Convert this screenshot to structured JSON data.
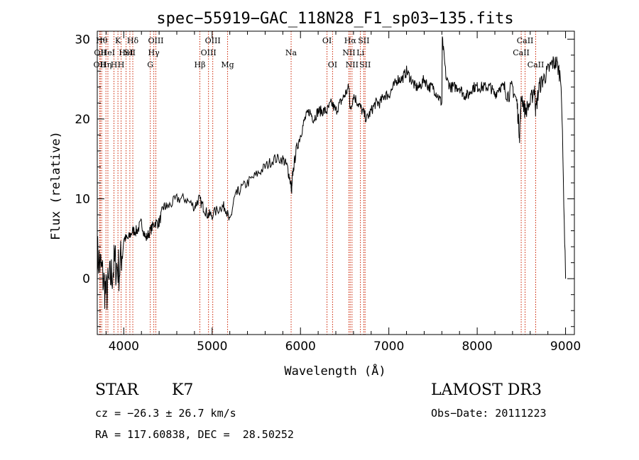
{
  "chart_data": {
    "type": "line",
    "title": "spec−55919−GAC_118N28_F1_sp03−135.fits",
    "xlabel": "Wavelength (Å)",
    "ylabel": "Flux (relative)",
    "xlim": [
      3700,
      9100
    ],
    "ylim": [
      -7,
      31
    ],
    "xticks": [
      4000,
      5000,
      6000,
      7000,
      8000,
      9000
    ],
    "yticks": [
      0,
      10,
      20,
      30
    ],
    "grid": false,
    "legend": "none",
    "series": [
      {
        "x": [
          3700,
          3750,
          3800,
          3850,
          3900,
          3950,
          4000,
          4050,
          4100,
          4150,
          4200,
          4250,
          4300,
          4350,
          4400,
          4450,
          4500,
          4600,
          4700,
          4800,
          4850,
          4900,
          4950,
          5000,
          5100,
          5150,
          5200,
          5250,
          5300,
          5400,
          5500,
          5600,
          5700,
          5800,
          5850,
          5890,
          5900,
          5910,
          5950,
          6000,
          6050,
          6100,
          6150,
          6200,
          6250,
          6300,
          6350,
          6400,
          6450,
          6500,
          6550,
          6563,
          6600,
          6650,
          6700,
          6750,
          6800,
          6850,
          6900,
          6950,
          7000,
          7050,
          7100,
          7150,
          7200,
          7250,
          7300,
          7350,
          7400,
          7450,
          7500,
          7550,
          7600,
          7605,
          7650,
          7700,
          7750,
          7800,
          7850,
          7900,
          7950,
          8000,
          8050,
          8100,
          8150,
          8200,
          8250,
          8300,
          8350,
          8400,
          8450,
          8480,
          8500,
          8542,
          8600,
          8650,
          8662,
          8700,
          8750,
          8800,
          8850,
          8900,
          8950,
          9000
        ],
        "y": [
          3,
          1,
          -2,
          0,
          2,
          1,
          5,
          5,
          6,
          6,
          7,
          5,
          6,
          7,
          7,
          9,
          9,
          10,
          10,
          9,
          10,
          9,
          8,
          8,
          9,
          9,
          7,
          10,
          11,
          12,
          13,
          14,
          15,
          15,
          14,
          12,
          11,
          13,
          16,
          18,
          20,
          21,
          20,
          21,
          21,
          21,
          22,
          21,
          22,
          23,
          24,
          21,
          23,
          22,
          21,
          20,
          21,
          22,
          22,
          23,
          23,
          24,
          25,
          25,
          26,
          25,
          24,
          24,
          25,
          24,
          24,
          23,
          22,
          30,
          25,
          24,
          24,
          24,
          23,
          23,
          24,
          24,
          24,
          24,
          24,
          23,
          24,
          24,
          23,
          24,
          22,
          18,
          23,
          21,
          22,
          24,
          21,
          24,
          25,
          26,
          27,
          27,
          25,
          0
        ]
      }
    ],
    "lines": [
      {
        "wl": 3727,
        "label": "OII",
        "row": 2
      },
      {
        "wl": 3734,
        "label": "OII",
        "row": 1
      },
      {
        "wl": 3750,
        "label": "Hθ",
        "row": 0
      },
      {
        "wl": 3798,
        "label": "Hη",
        "row": 2
      },
      {
        "wl": 3820,
        "label": "HeI",
        "row": 1
      },
      {
        "wl": 3889,
        "label": "H",
        "row": 2
      },
      {
        "wl": 3934,
        "label": "K",
        "row": 0
      },
      {
        "wl": 3970,
        "label": "H",
        "row": 2
      },
      {
        "wl": 4026,
        "label": "HeI",
        "row": 1
      },
      {
        "wl": 4069,
        "label": "SII",
        "row": 1
      },
      {
        "wl": 4102,
        "label": "Hδ",
        "row": 0
      },
      {
        "wl": 4300,
        "label": "G",
        "row": 2
      },
      {
        "wl": 4340,
        "label": "Hγ",
        "row": 1
      },
      {
        "wl": 4363,
        "label": "OIII",
        "row": 0
      },
      {
        "wl": 4861,
        "label": "Hβ",
        "row": 2
      },
      {
        "wl": 4959,
        "label": "OIII",
        "row": 1
      },
      {
        "wl": 5007,
        "label": "OIII",
        "row": 0
      },
      {
        "wl": 5175,
        "label": "Mg",
        "row": 2
      },
      {
        "wl": 5894,
        "label": "Na",
        "row": 1
      },
      {
        "wl": 6300,
        "label": "OI",
        "row": 0
      },
      {
        "wl": 6363,
        "label": "OI",
        "row": 2
      },
      {
        "wl": 6548,
        "label": "NII",
        "row": 1
      },
      {
        "wl": 6563,
        "label": "Hα",
        "row": 0
      },
      {
        "wl": 6583,
        "label": "NII",
        "row": 2
      },
      {
        "wl": 6678,
        "label": "Li",
        "row": 1
      },
      {
        "wl": 6716,
        "label": "SII",
        "row": 0
      },
      {
        "wl": 6731,
        "label": "SII",
        "row": 2
      },
      {
        "wl": 8498,
        "label": "CaII",
        "row": 1
      },
      {
        "wl": 8542,
        "label": "CaII",
        "row": 0
      },
      {
        "wl": 8662,
        "label": "CaII",
        "row": 2
      }
    ]
  },
  "info": {
    "object_class": "STAR",
    "subclass": "K7",
    "survey": "LAMOST DR3",
    "redshift": "cz = −26.3 ± 26.7 km/s",
    "obs_date": "Obs−Date: 20111223",
    "coords": "RA = 117.60838, DEC =  28.50252"
  },
  "colors": {
    "spectrum": "#000000",
    "line_markers": "#cc2200"
  }
}
